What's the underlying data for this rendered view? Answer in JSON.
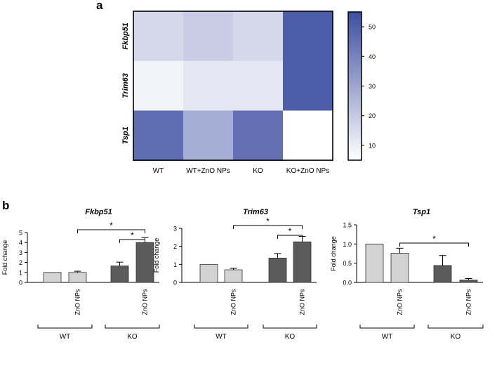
{
  "panel_labels": {
    "a": "a",
    "b": "b"
  },
  "colors": {
    "low": "#ffffff",
    "high": "#3c4ea1",
    "dark_bar": "#5b5b5b",
    "light_bar": "#d3d3d3"
  },
  "chart_data": [
    {
      "type": "heatmap",
      "rows": [
        "Fkbp51",
        "Trim63",
        "Tsp1"
      ],
      "columns": [
        "WT",
        "WT+ZnO NPs",
        "KO",
        "KO+ZnO NPs"
      ],
      "values": [
        [
          16,
          19,
          16,
          51
        ],
        [
          8,
          12,
          12,
          51
        ],
        [
          46,
          28,
          45,
          5
        ]
      ],
      "colorbar": {
        "min": 5,
        "max": 55,
        "ticks": [
          10,
          20,
          30,
          40,
          50
        ]
      }
    },
    {
      "type": "bar",
      "title": "Fkbp51",
      "ylabel": "Fold change",
      "ylim": [
        0,
        5
      ],
      "yticks": [
        0,
        1,
        2,
        3,
        4,
        5
      ],
      "categories": [
        "",
        "ZnO NPs",
        "",
        "ZnO NPs"
      ],
      "groups": [
        "WT",
        "KO"
      ],
      "values": [
        1.0,
        1.0,
        1.65,
        4.0
      ],
      "errors": [
        0,
        0.12,
        0.38,
        0.5
      ],
      "significance": [
        {
          "from": 1,
          "to": 3,
          "label": "*"
        },
        {
          "from": 2,
          "to": 3,
          "label": "*"
        }
      ]
    },
    {
      "type": "bar",
      "title": "Trim63",
      "ylabel": "Fold change",
      "ylim": [
        0,
        3
      ],
      "yticks": [
        0,
        1,
        2,
        3
      ],
      "categories": [
        "",
        "ZnO NPs",
        "",
        "ZnO NPs"
      ],
      "groups": [
        "WT",
        "KO"
      ],
      "values": [
        1.0,
        0.7,
        1.35,
        2.25
      ],
      "errors": [
        0,
        0.08,
        0.25,
        0.3
      ],
      "significance": [
        {
          "from": 1,
          "to": 3,
          "label": "*"
        },
        {
          "from": 2,
          "to": 3,
          "label": "*"
        }
      ]
    },
    {
      "type": "bar",
      "title": "Tsp1",
      "ylabel": "Fold change",
      "ylim": [
        0,
        1.5
      ],
      "yticks": [
        "0.0",
        "0.5",
        "1.0",
        "1.5"
      ],
      "categories": [
        "",
        "ZnO NPs",
        "",
        "ZnO NPs"
      ],
      "groups": [
        "WT",
        "KO"
      ],
      "values": [
        1.0,
        0.76,
        0.44,
        0.06
      ],
      "errors": [
        0,
        0.13,
        0.26,
        0.04
      ],
      "significance": [
        {
          "from": 1,
          "to": 3,
          "label": "*"
        }
      ]
    }
  ]
}
